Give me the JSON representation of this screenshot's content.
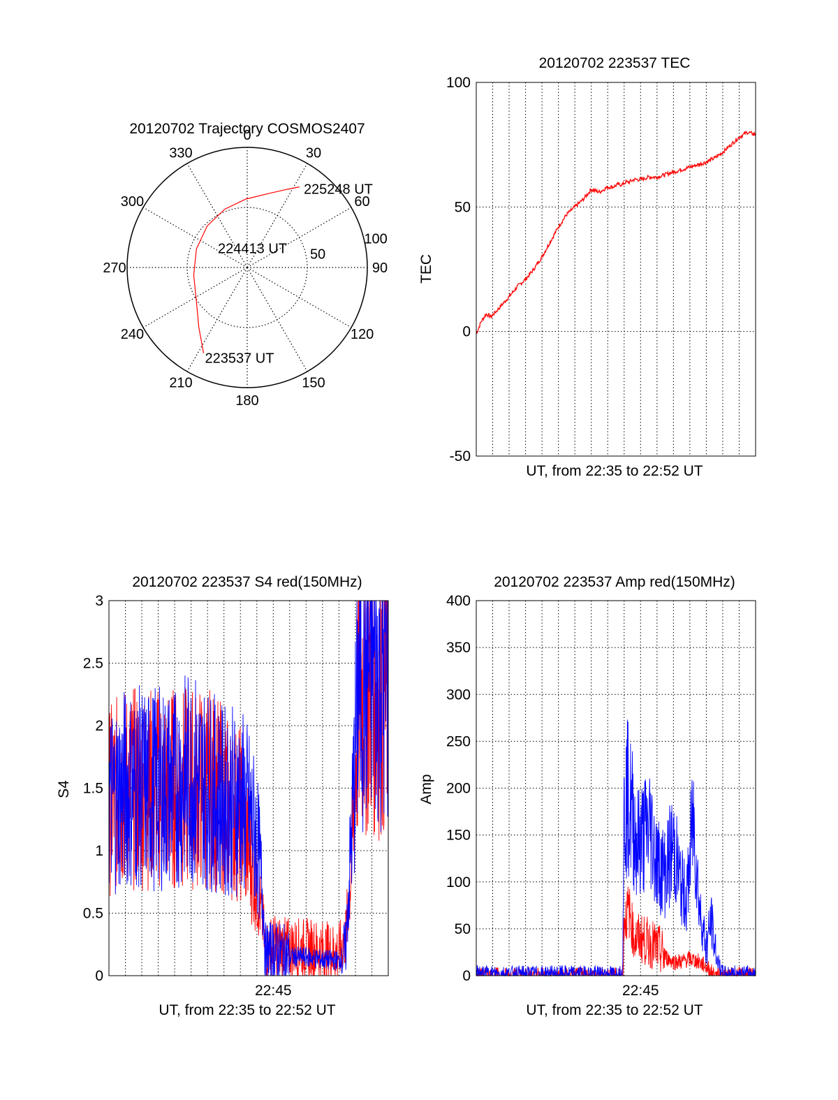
{
  "colors": {
    "red": "#ff0000",
    "blue": "#0000ff",
    "axis": "#000000",
    "grid": "#000000"
  },
  "chart_data": [
    {
      "id": "polar",
      "type": "polar-trajectory",
      "title": "20120702 Trajectory COSMOS2407",
      "azimuth_labels": [
        "0",
        "30",
        "60",
        "90",
        "120",
        "150",
        "180",
        "210",
        "240",
        "270",
        "300",
        "330"
      ],
      "radial_labels": [
        "50",
        "100"
      ],
      "radial_max": 100,
      "trajectory": {
        "color": "red",
        "points": [
          {
            "az": 207,
            "r": 80
          },
          {
            "az": 219,
            "r": 64
          },
          {
            "az": 236,
            "r": 51
          },
          {
            "az": 262,
            "r": 45
          },
          {
            "az": 290,
            "r": 45
          },
          {
            "az": 316,
            "r": 48
          },
          {
            "az": 339,
            "r": 52
          },
          {
            "az": 359,
            "r": 57
          },
          {
            "az": 16,
            "r": 64
          },
          {
            "az": 27,
            "r": 73
          },
          {
            "az": 33,
            "r": 80
          }
        ]
      },
      "annotations": [
        {
          "text": "225248 UT",
          "az": 33,
          "r": 80
        },
        {
          "text": "224413 UT",
          "az": 300,
          "r": 3
        },
        {
          "text": "223537 UT",
          "az": 207,
          "r": 80
        }
      ]
    },
    {
      "id": "tec",
      "type": "line",
      "title": "20120702 223537 TEC",
      "xlabel": "UT, from 22:35 to 22:52 UT",
      "ylabel": "TEC",
      "ylim": [
        -50,
        100
      ],
      "yticks": [
        -50,
        0,
        50,
        100
      ],
      "xlim_min": [
        0,
        17
      ],
      "series": [
        {
          "color": "red",
          "x": [
            0,
            0.3,
            0.6,
            0.9,
            1.2,
            1.6,
            2.0,
            2.5,
            3.0,
            3.5,
            4.0,
            4.5,
            5.0,
            5.5,
            6.0,
            6.5,
            7.0,
            7.5,
            8.0,
            8.3,
            8.6,
            8.9,
            9.1,
            9.3,
            9.6,
            10.0,
            10.5,
            11.0,
            11.5,
            12.0,
            12.5,
            13.0,
            13.5,
            14.0,
            14.3,
            14.6,
            15.0,
            15.5,
            16.0,
            16.5,
            17.0
          ],
          "y": [
            -1,
            4,
            7,
            6,
            8,
            11,
            14,
            18,
            21,
            25,
            30,
            36,
            42,
            47,
            50,
            53,
            57,
            56,
            58,
            58,
            59,
            59,
            60,
            60,
            61,
            61,
            62,
            62,
            63,
            64,
            65,
            66,
            67,
            68,
            69,
            70,
            72,
            75,
            78,
            80,
            79
          ]
        }
      ]
    },
    {
      "id": "s4",
      "type": "line",
      "title": "20120702 223537 S4 red(150MHz)",
      "xlabel": "UT, from 22:35 to 22:52 UT",
      "ylabel": "S4",
      "ylim": [
        0,
        3
      ],
      "yticks": [
        0,
        0.5,
        1,
        1.5,
        2,
        2.5,
        3
      ],
      "ytick_labels": [
        "0",
        "0.5",
        "1",
        "1.5",
        "2",
        "2.5",
        "3"
      ],
      "xlim_min": [
        0,
        17
      ],
      "xtick": {
        "value": 10,
        "label": "22:45"
      },
      "series": [
        {
          "color": "red",
          "name": "",
          "style": "noisy",
          "x": [
            0,
            1,
            2,
            3,
            4,
            5,
            6,
            7,
            7.5,
            8,
            8.5,
            9,
            9.4,
            9.5,
            10,
            11,
            12,
            13,
            14,
            14.4,
            14.8,
            15.2,
            16,
            17
          ],
          "y": [
            1.4,
            1.5,
            1.5,
            1.5,
            1.5,
            1.5,
            1.5,
            1.4,
            1.3,
            1.3,
            1.0,
            0.7,
            0.4,
            0.2,
            0.25,
            0.22,
            0.22,
            0.2,
            0.18,
            0.3,
            1.0,
            2.3,
            2.4,
            2.3
          ]
        },
        {
          "color": "blue",
          "name": "",
          "style": "noisy",
          "x": [
            0,
            1,
            2,
            3,
            4,
            5,
            6,
            7,
            7.5,
            8,
            8.5,
            9,
            9.4,
            9.5,
            10,
            11,
            12,
            13,
            14,
            14.4,
            14.8,
            15.2,
            16,
            17
          ],
          "y": [
            1.4,
            1.5,
            1.5,
            1.5,
            1.5,
            1.6,
            1.5,
            1.4,
            1.4,
            1.4,
            1.3,
            1.1,
            0.6,
            0.18,
            0.2,
            0.15,
            0.15,
            0.13,
            0.12,
            0.2,
            1.2,
            2.4,
            2.5,
            2.4
          ]
        }
      ]
    },
    {
      "id": "amp",
      "type": "line",
      "title": "20120702 223537 Amp red(150MHz)",
      "xlabel": "UT, from 22:35 to 22:52 UT",
      "ylabel": "Amp",
      "ylim": [
        0,
        400
      ],
      "yticks": [
        0,
        50,
        100,
        150,
        200,
        250,
        300,
        350,
        400
      ],
      "xlim_min": [
        0,
        17
      ],
      "xtick": {
        "value": 10,
        "label": "22:45"
      },
      "series": [
        {
          "color": "red",
          "name": "",
          "style": "noisy",
          "x": [
            0,
            8.8,
            8.9,
            9.0,
            9.3,
            9.6,
            10.0,
            10.5,
            11.0,
            11.5,
            12.0,
            12.5,
            13.0,
            13.5,
            14.0,
            14.5,
            15.0,
            17.0
          ],
          "y": [
            0,
            0,
            2,
            60,
            70,
            40,
            40,
            35,
            30,
            20,
            15,
            15,
            18,
            15,
            10,
            0,
            0,
            0
          ]
        },
        {
          "color": "blue",
          "name": "",
          "style": "noisy",
          "x": [
            0,
            8.7,
            8.8,
            8.9,
            9.0,
            9.2,
            9.5,
            9.8,
            10.2,
            10.6,
            11.0,
            11.5,
            12.0,
            12.4,
            12.8,
            13.2,
            13.6,
            14.0,
            14.3,
            14.6,
            15.0,
            17.0
          ],
          "y": [
            2,
            2,
            2,
            5,
            180,
            190,
            170,
            140,
            150,
            160,
            120,
            110,
            140,
            100,
            80,
            170,
            70,
            30,
            60,
            20,
            2,
            2
          ]
        }
      ]
    }
  ]
}
